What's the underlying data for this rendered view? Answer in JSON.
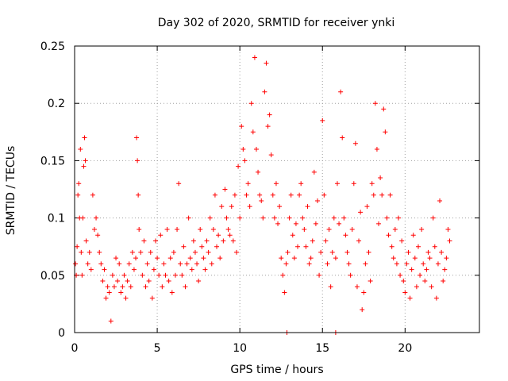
{
  "chart_data": {
    "type": "scatter",
    "title": "Day 302 of 2020, SRMTID for receiver ynki",
    "xlabel": "GPS time / hours",
    "ylabel": "SRMTID / TECUs",
    "xlim": [
      0,
      24.5
    ],
    "ylim": [
      0,
      0.25
    ],
    "xticks": [
      0,
      5,
      10,
      15,
      20
    ],
    "xtick_labels": [
      "0",
      "5",
      "10",
      "15",
      "20"
    ],
    "yticks": [
      0,
      0.05,
      0.1,
      0.15,
      0.2,
      0.25
    ],
    "ytick_labels": [
      "0",
      "0.05",
      "0.1",
      "0.15",
      "0.2",
      "0.25"
    ],
    "grid": true,
    "marker": "+",
    "color": "#ff0000",
    "series": [
      {
        "name": "SRMTID",
        "x": [
          0.05,
          0.1,
          0.15,
          0.2,
          0.25,
          0.3,
          0.35,
          0.4,
          0.45,
          0.5,
          0.55,
          0.6,
          0.65,
          0.7,
          0.8,
          0.9,
          1.0,
          1.1,
          1.2,
          1.3,
          1.4,
          1.5,
          1.6,
          1.7,
          1.8,
          1.9,
          2.0,
          2.1,
          2.2,
          2.3,
          2.4,
          2.5,
          2.6,
          2.7,
          2.8,
          2.9,
          3.0,
          3.1,
          3.2,
          3.3,
          3.4,
          3.5,
          3.6,
          3.7,
          3.75,
          3.8,
          3.85,
          3.9,
          4.0,
          4.1,
          4.2,
          4.3,
          4.4,
          4.5,
          4.6,
          4.7,
          4.8,
          4.9,
          5.0,
          5.1,
          5.2,
          5.3,
          5.4,
          5.5,
          5.6,
          5.7,
          5.8,
          5.9,
          6.0,
          6.1,
          6.2,
          6.3,
          6.4,
          6.5,
          6.6,
          6.7,
          6.8,
          6.9,
          7.0,
          7.1,
          7.2,
          7.3,
          7.4,
          7.5,
          7.6,
          7.7,
          7.8,
          7.9,
          8.0,
          8.1,
          8.2,
          8.3,
          8.4,
          8.5,
          8.6,
          8.7,
          8.8,
          8.9,
          9.0,
          9.1,
          9.2,
          9.3,
          9.4,
          9.5,
          9.6,
          9.7,
          9.8,
          9.9,
          10.0,
          10.1,
          10.2,
          10.3,
          10.4,
          10.5,
          10.6,
          10.7,
          10.8,
          10.9,
          11.0,
          11.1,
          11.2,
          11.3,
          11.4,
          11.5,
          11.6,
          11.7,
          11.8,
          11.9,
          12.0,
          12.1,
          12.2,
          12.3,
          12.4,
          12.5,
          12.6,
          12.7,
          12.8,
          12.9,
          13.0,
          13.1,
          13.2,
          13.3,
          13.4,
          13.5,
          13.6,
          13.7,
          13.8,
          13.9,
          14.0,
          14.1,
          14.2,
          14.3,
          14.4,
          14.5,
          14.6,
          14.7,
          14.8,
          14.9,
          15.0,
          15.1,
          15.2,
          15.3,
          15.4,
          15.5,
          15.6,
          15.7,
          15.8,
          15.9,
          16.0,
          16.1,
          16.2,
          16.3,
          16.4,
          16.5,
          16.6,
          16.7,
          16.8,
          16.9,
          17.0,
          17.1,
          17.2,
          17.3,
          17.4,
          17.5,
          17.6,
          17.7,
          17.8,
          17.9,
          18.0,
          18.1,
          18.2,
          18.3,
          18.4,
          18.5,
          18.6,
          18.7,
          18.8,
          18.9,
          19.0,
          19.1,
          19.2,
          19.3,
          19.4,
          19.5,
          19.6,
          19.7,
          19.8,
          19.9,
          20.0,
          20.1,
          20.2,
          20.3,
          20.4,
          20.5,
          20.6,
          20.7,
          20.8,
          20.9,
          21.0,
          21.1,
          21.2,
          21.3,
          21.4,
          21.5,
          21.6,
          21.7,
          21.8,
          21.9,
          22.0,
          22.1,
          22.2,
          22.3,
          22.4,
          22.5,
          22.6,
          22.7,
          12.85,
          15.8
        ],
        "y": [
          0.06,
          0.05,
          0.075,
          0.12,
          0.13,
          0.1,
          0.16,
          0.07,
          0.05,
          0.1,
          0.145,
          0.17,
          0.15,
          0.08,
          0.06,
          0.07,
          0.055,
          0.12,
          0.09,
          0.1,
          0.085,
          0.07,
          0.06,
          0.045,
          0.055,
          0.03,
          0.04,
          0.035,
          0.01,
          0.05,
          0.04,
          0.065,
          0.045,
          0.06,
          0.035,
          0.04,
          0.05,
          0.03,
          0.045,
          0.06,
          0.04,
          0.07,
          0.055,
          0.065,
          0.17,
          0.15,
          0.12,
          0.09,
          0.07,
          0.05,
          0.08,
          0.04,
          0.06,
          0.045,
          0.07,
          0.03,
          0.055,
          0.08,
          0.065,
          0.05,
          0.085,
          0.04,
          0.06,
          0.05,
          0.09,
          0.045,
          0.065,
          0.035,
          0.07,
          0.05,
          0.09,
          0.13,
          0.06,
          0.05,
          0.075,
          0.04,
          0.06,
          0.1,
          0.065,
          0.055,
          0.08,
          0.07,
          0.06,
          0.045,
          0.09,
          0.075,
          0.065,
          0.055,
          0.08,
          0.07,
          0.1,
          0.06,
          0.09,
          0.12,
          0.075,
          0.085,
          0.065,
          0.11,
          0.08,
          0.125,
          0.1,
          0.09,
          0.085,
          0.11,
          0.08,
          0.12,
          0.07,
          0.145,
          0.1,
          0.18,
          0.16,
          0.15,
          0.12,
          0.13,
          0.11,
          0.2,
          0.175,
          0.24,
          0.16,
          0.14,
          0.12,
          0.115,
          0.1,
          0.21,
          0.235,
          0.18,
          0.19,
          0.155,
          0.12,
          0.1,
          0.13,
          0.095,
          0.11,
          0.065,
          0.05,
          0.035,
          0.06,
          0.07,
          0.1,
          0.12,
          0.085,
          0.065,
          0.095,
          0.075,
          0.12,
          0.13,
          0.1,
          0.09,
          0.075,
          0.11,
          0.06,
          0.065,
          0.08,
          0.14,
          0.095,
          0.115,
          0.05,
          0.07,
          0.185,
          0.12,
          0.08,
          0.06,
          0.09,
          0.04,
          0.07,
          0.1,
          0.065,
          0.13,
          0.095,
          0.21,
          0.17,
          0.1,
          0.085,
          0.07,
          0.06,
          0.05,
          0.09,
          0.13,
          0.165,
          0.04,
          0.08,
          0.105,
          0.02,
          0.035,
          0.06,
          0.11,
          0.07,
          0.045,
          0.13,
          0.12,
          0.2,
          0.16,
          0.095,
          0.135,
          0.12,
          0.195,
          0.175,
          0.1,
          0.085,
          0.12,
          0.075,
          0.065,
          0.09,
          0.06,
          0.1,
          0.05,
          0.08,
          0.045,
          0.035,
          0.06,
          0.07,
          0.03,
          0.055,
          0.085,
          0.065,
          0.04,
          0.075,
          0.05,
          0.09,
          0.06,
          0.045,
          0.055,
          0.07,
          0.065,
          0.04,
          0.1,
          0.075,
          0.03,
          0.06,
          0.115,
          0.07,
          0.045,
          0.055,
          0.065,
          0.09,
          0.08,
          0.0,
          0.0
        ]
      }
    ]
  }
}
